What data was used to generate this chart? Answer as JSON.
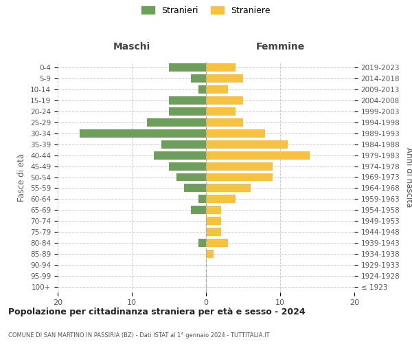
{
  "age_groups": [
    "100+",
    "95-99",
    "90-94",
    "85-89",
    "80-84",
    "75-79",
    "70-74",
    "65-69",
    "60-64",
    "55-59",
    "50-54",
    "45-49",
    "40-44",
    "35-39",
    "30-34",
    "25-29",
    "20-24",
    "15-19",
    "10-14",
    "5-9",
    "0-4"
  ],
  "birth_years": [
    "≤ 1923",
    "1924-1928",
    "1929-1933",
    "1934-1938",
    "1939-1943",
    "1944-1948",
    "1949-1953",
    "1954-1958",
    "1959-1963",
    "1964-1968",
    "1969-1973",
    "1974-1978",
    "1979-1983",
    "1984-1988",
    "1989-1993",
    "1994-1998",
    "1999-2003",
    "2004-2008",
    "2009-2013",
    "2014-2018",
    "2019-2023"
  ],
  "maschi": [
    0,
    0,
    0,
    0,
    1,
    0,
    0,
    2,
    1,
    3,
    4,
    5,
    7,
    6,
    17,
    8,
    5,
    5,
    1,
    2,
    5
  ],
  "femmine": [
    0,
    0,
    0,
    1,
    3,
    2,
    2,
    2,
    4,
    6,
    9,
    9,
    14,
    11,
    8,
    5,
    4,
    5,
    3,
    5,
    4
  ],
  "color_maschi": "#6d9e5a",
  "color_femmine": "#f5c242",
  "title": "Popolazione per cittadinanza straniera per età e sesso - 2024",
  "subtitle": "COMUNE DI SAN MARTINO IN PASSIRIA (BZ) - Dati ISTAT al 1° gennaio 2024 - TUTTITALIA.IT",
  "xlabel_left": "Maschi",
  "xlabel_right": "Femmine",
  "ylabel_left": "Fasce di età",
  "ylabel_right": "Anni di nascita",
  "legend_maschi": "Stranieri",
  "legend_femmine": "Straniere",
  "xlim": 20,
  "background_color": "#ffffff",
  "grid_color": "#cccccc"
}
